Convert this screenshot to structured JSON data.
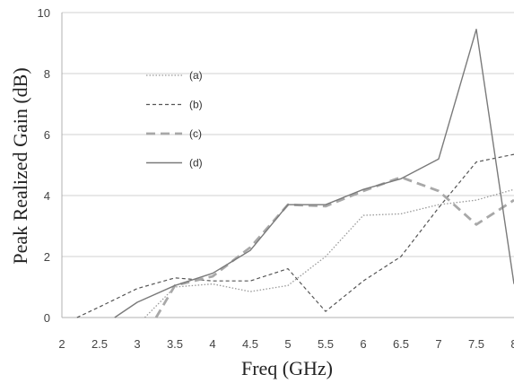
{
  "chart_data": {
    "type": "line",
    "title": "",
    "xlabel": "Freq (GHz)",
    "ylabel": "Peak Realized Gain (dB)",
    "xlim": [
      2,
      8
    ],
    "ylim": [
      0,
      10
    ],
    "x_ticks": [
      2,
      2.5,
      3,
      3.5,
      4,
      4.5,
      5,
      5.5,
      6,
      6.5,
      7,
      7.5,
      8
    ],
    "y_ticks": [
      0,
      2,
      4,
      6,
      8,
      10
    ],
    "grid": "horizontal",
    "legend_position": "top-left",
    "x": [
      2.0,
      2.5,
      3.0,
      3.5,
      4.0,
      4.5,
      5.0,
      5.5,
      6.0,
      6.5,
      7.0,
      7.5,
      8.0
    ],
    "series": [
      {
        "name": "(a)",
        "style": "dotted",
        "color": "#9a9a9a",
        "values": [
          null,
          null,
          null,
          1.0,
          1.1,
          0.85,
          1.05,
          2.0,
          3.35,
          3.4,
          3.7,
          3.85,
          4.2
        ]
      },
      {
        "name": "(b)",
        "style": "dashed-short",
        "color": "#555555",
        "values": [
          null,
          0.35,
          0.95,
          1.3,
          1.2,
          1.2,
          1.6,
          0.2,
          1.2,
          2.0,
          3.6,
          5.1,
          5.35
        ]
      },
      {
        "name": "(c)",
        "style": "dashed-long",
        "color": "#a8a8a8",
        "values": [
          null,
          null,
          null,
          1.05,
          1.35,
          2.3,
          3.7,
          3.65,
          4.15,
          4.6,
          4.15,
          3.05,
          3.85
        ]
      },
      {
        "name": "(d)",
        "style": "solid",
        "color": "#7a7a7a",
        "values": [
          null,
          null,
          0.5,
          1.05,
          1.45,
          2.2,
          3.7,
          3.7,
          4.2,
          4.55,
          5.2,
          9.45,
          1.1
        ]
      }
    ],
    "start_points": {
      "(a)": [
        3.1,
        0
      ],
      "(b)": [
        2.2,
        0
      ],
      "(c)": [
        3.25,
        0
      ],
      "(d)": [
        2.7,
        0
      ]
    }
  }
}
